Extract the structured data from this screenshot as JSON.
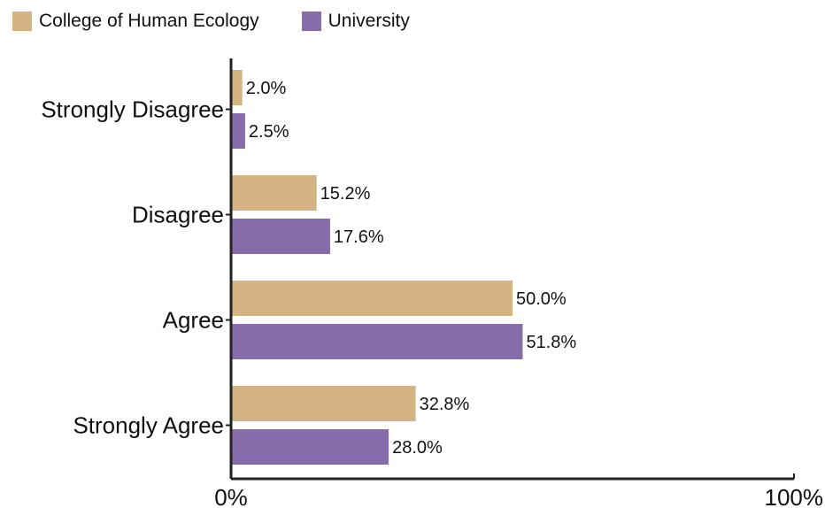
{
  "chart_data": {
    "type": "bar",
    "orientation": "horizontal",
    "categories": [
      "Strongly Disagree",
      "Disagree",
      "Agree",
      "Strongly Agree"
    ],
    "series": [
      {
        "name": "College of Human Ecology",
        "color": "#d4b483",
        "values": [
          2.0,
          15.2,
          50.0,
          32.8
        ]
      },
      {
        "name": "University",
        "color": "#866caa",
        "values": [
          2.5,
          17.6,
          51.8,
          28.0
        ]
      }
    ],
    "value_format": "%",
    "xlim": [
      0,
      100
    ],
    "x_tick_labels": [
      "0%",
      "100%"
    ],
    "legend_position": "top-left",
    "grid": false
  }
}
